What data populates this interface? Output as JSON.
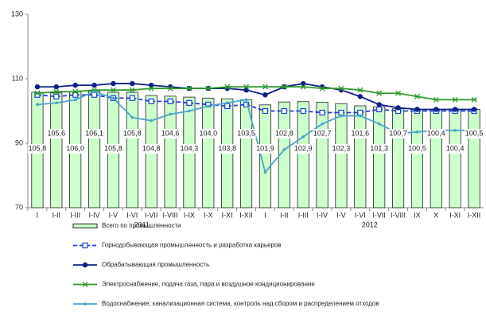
{
  "chart_data": {
    "type": "bar",
    "categories": [
      "I",
      "I-II",
      "I-III",
      "I-IV",
      "I-V",
      "I-VI",
      "I-VII",
      "I-VIII",
      "I-IX",
      "I-X",
      "I-XI",
      "I-XII",
      "I",
      "I-II",
      "I-III",
      "I-IV",
      "I-V",
      "I-VI",
      "I-VII",
      "I-VIII",
      "IX",
      "X",
      "I-XI",
      "I-XII"
    ],
    "groups": [
      "2011",
      "2012"
    ],
    "ylim": [
      70,
      130
    ],
    "yticks": [
      70,
      90,
      110,
      130
    ],
    "series": [
      {
        "name": "Всего по промышленности",
        "type": "bar",
        "color": "#ccffcc",
        "values": [
          105.8,
          105.6,
          106.0,
          106.1,
          105.8,
          105.8,
          104.8,
          104.6,
          104.3,
          104.0,
          103.8,
          103.5,
          101.9,
          102.8,
          102.9,
          102.7,
          102.3,
          101.6,
          101.3,
          100.7,
          100.5,
          100.4,
          100.4,
          100.5
        ],
        "value_labels": [
          "105,8",
          "105,6",
          "106,0",
          "106,1",
          "105,8",
          "105,8",
          "104,8",
          "104,6",
          "104,3",
          "104,0",
          "103,8",
          "103,5",
          "101,9",
          "102,8",
          "102,9",
          "102,7",
          "102,3",
          "101,6",
          "101,3",
          "100,7",
          "100,5",
          "100,4",
          "100,4",
          "100,5"
        ]
      },
      {
        "name": "Горнодобывающая промышленность и разработка карьеров",
        "type": "line",
        "color": "#1f3fe0",
        "dash": true,
        "marker": "square",
        "values": [
          105,
          104.5,
          105,
          105,
          104,
          104,
          103,
          103,
          102.5,
          102,
          101.5,
          102,
          100,
          100,
          100,
          99.5,
          99.5,
          99.5,
          100.5,
          100,
          100,
          100,
          100,
          100
        ]
      },
      {
        "name": "Обрабатывающая  промышленность",
        "type": "line",
        "color": "#10208a",
        "dash": false,
        "marker": "circle",
        "values": [
          107.5,
          107.5,
          108,
          108,
          108.5,
          108.5,
          108,
          107.5,
          107,
          107,
          107,
          106.5,
          105,
          107.5,
          108.5,
          107.5,
          106.5,
          104.5,
          102,
          101,
          100.5,
          100.5,
          100.5,
          100.5
        ]
      },
      {
        "name": "Электроснабжение, подача газа, пара и воздушное кондиционирование",
        "type": "line",
        "color": "#2e9a2e",
        "dash": false,
        "marker": "star",
        "values": [
          105.5,
          106,
          106,
          106.5,
          106.5,
          106.5,
          107,
          107,
          107,
          107,
          107.5,
          107.5,
          107.5,
          107.5,
          107.5,
          107,
          107,
          106.5,
          105.5,
          105.5,
          104.5,
          103.5,
          103.5,
          103.5
        ]
      },
      {
        "name": "Водоснабжение; канализационная система, контроль над сбором и распределением отходов",
        "type": "line",
        "color": "#4aa6cc",
        "dash": false,
        "marker": "dot",
        "values": [
          102,
          102.5,
          103.5,
          106,
          104,
          98,
          97,
          99,
          100,
          101.5,
          102.5,
          103.5,
          81,
          88,
          92,
          96,
          98.5,
          98.5,
          96,
          93,
          93.5,
          94,
          94,
          94
        ]
      }
    ]
  }
}
